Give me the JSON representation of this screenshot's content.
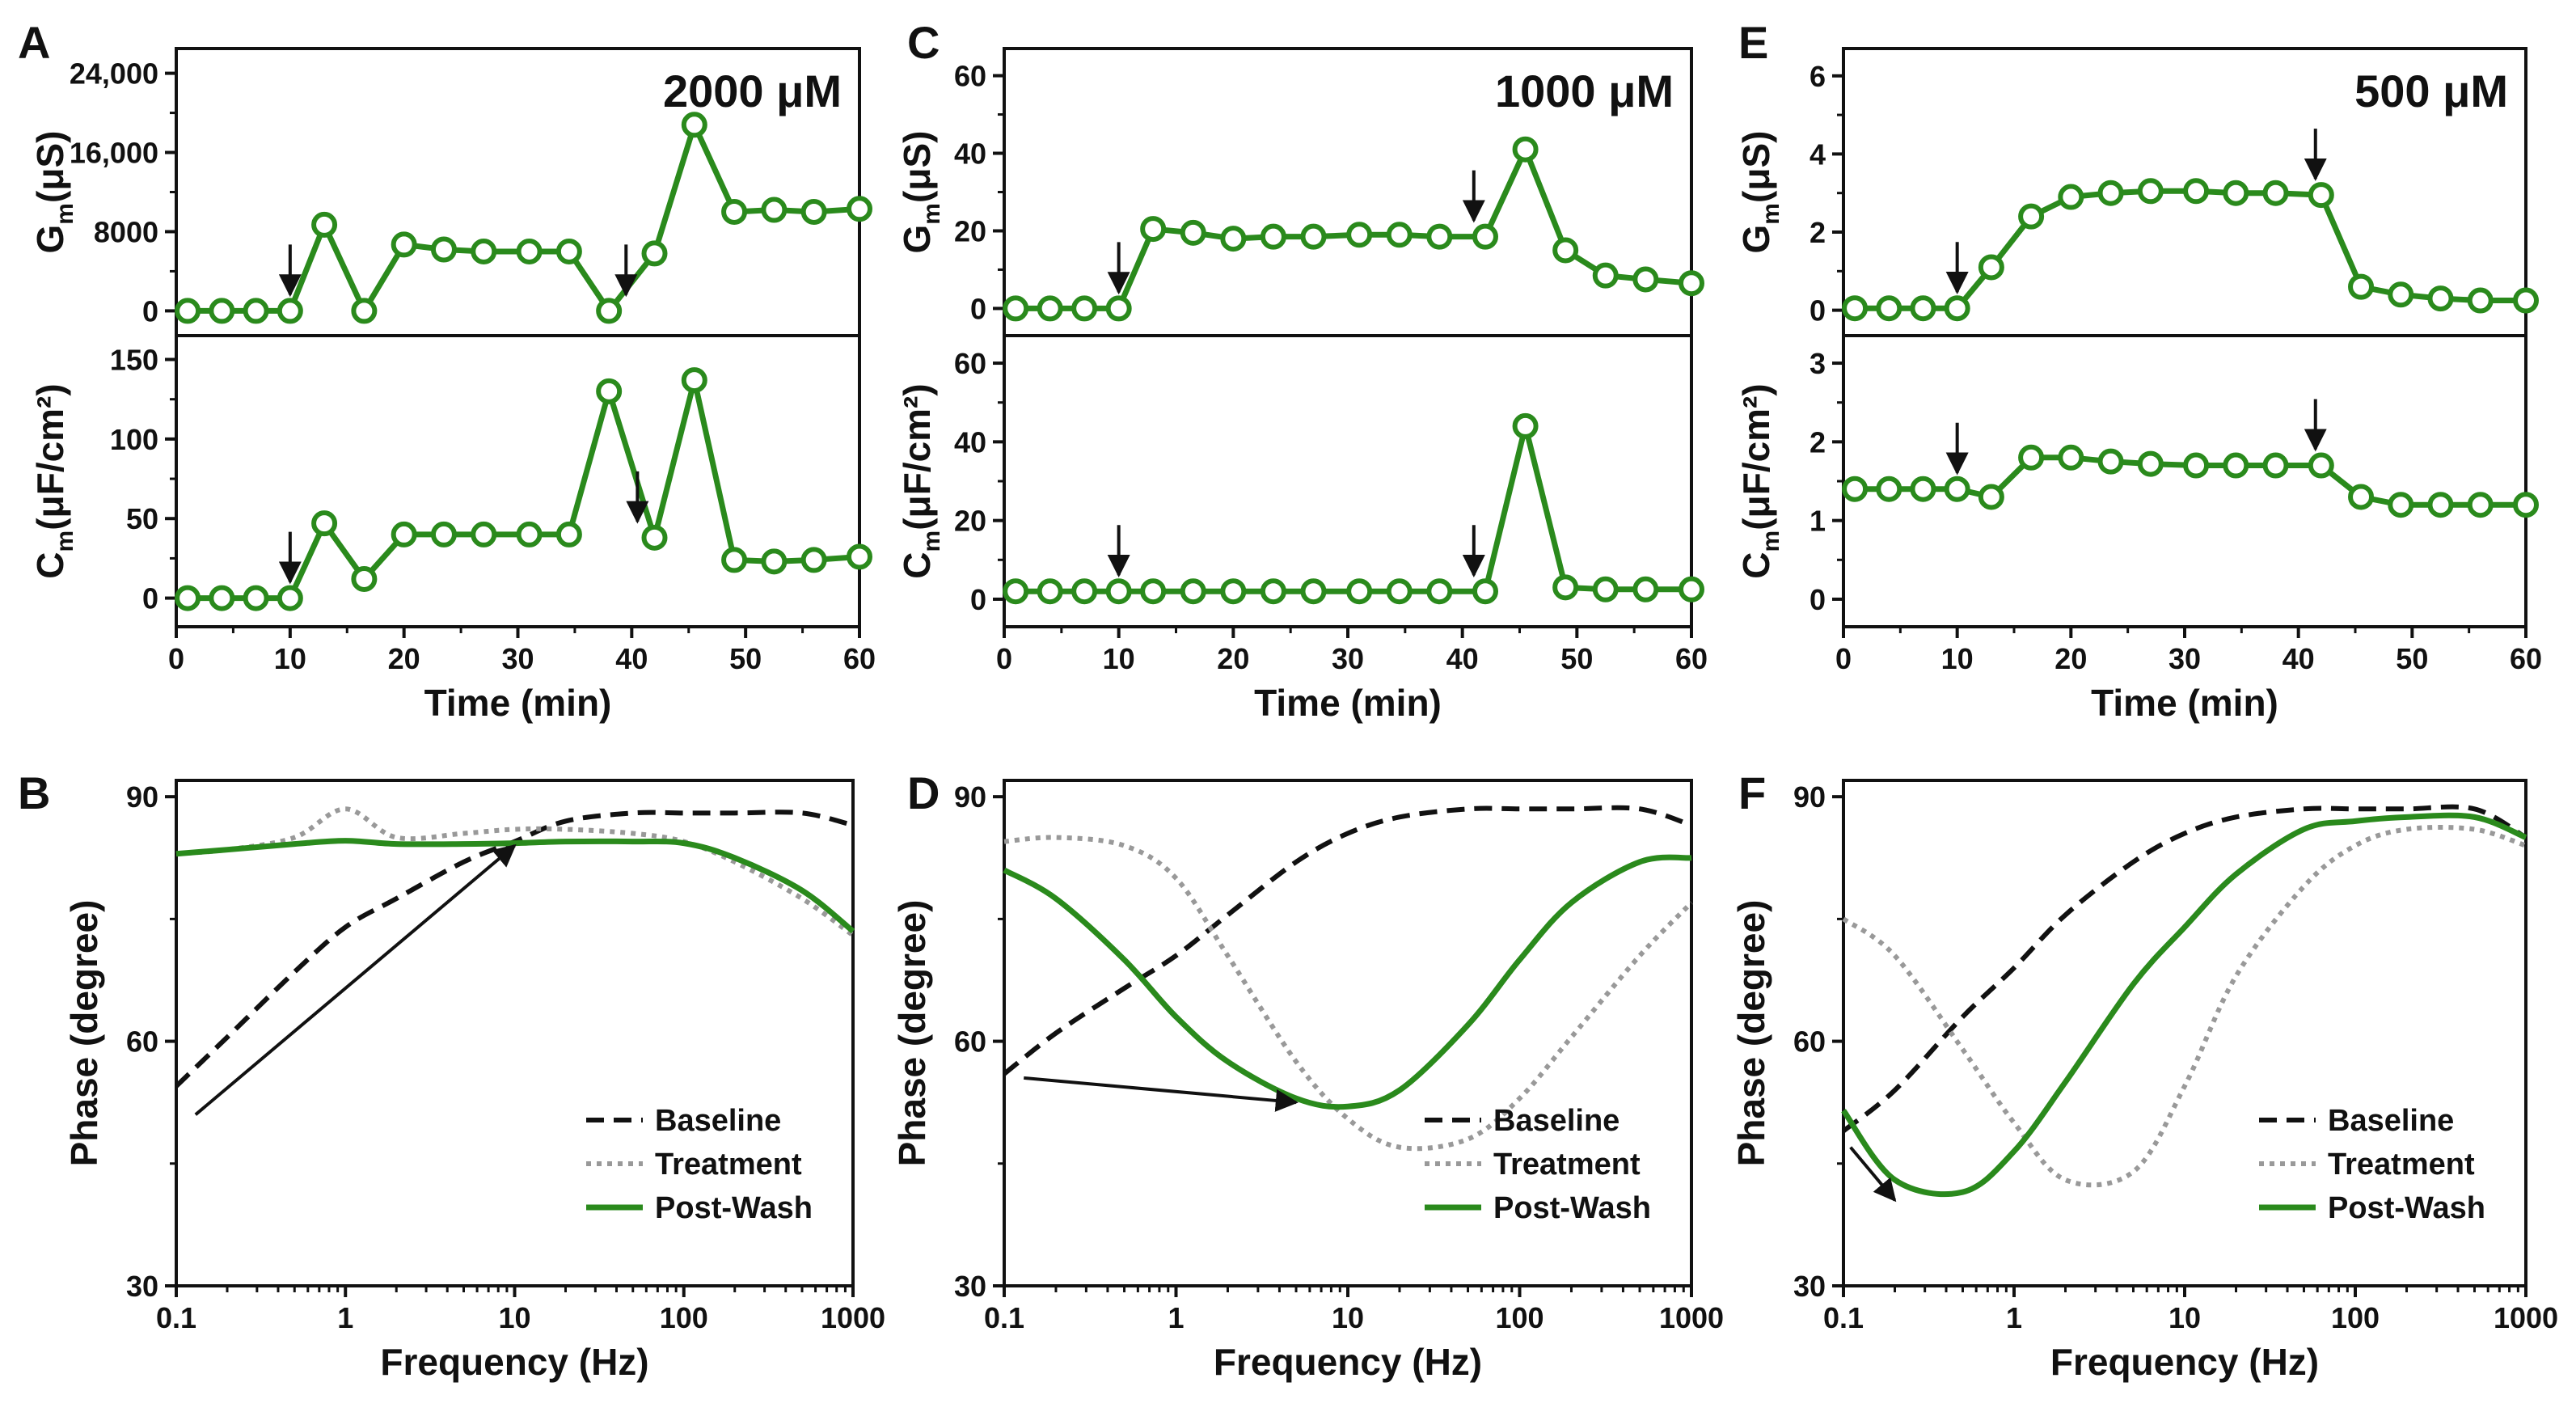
{
  "colors": {
    "green": "#2a8a1c",
    "baseline": "#111111",
    "treatment": "#999999",
    "axis": "#111111",
    "arrow": "#111111"
  },
  "chart_data": [
    {
      "panel": "A",
      "type": "line",
      "concentration": "2000 μM",
      "xlabel": "Time (min)",
      "xlim": [
        0,
        60
      ],
      "xticks": [
        "0",
        "10",
        "20",
        "30",
        "40",
        "50",
        "60"
      ],
      "x": [
        1,
        4,
        7,
        10,
        13,
        16.5,
        20,
        23.5,
        27,
        31,
        34.5,
        38,
        42,
        45.5,
        49,
        52.5,
        56,
        60
      ],
      "top": {
        "ylabel_main": "G",
        "ylabel_sub": "m",
        "ylabel_unit": "(μS)",
        "ylim": [
          -2500,
          26500
        ],
        "yticks": [
          0,
          8000,
          16000,
          24000
        ],
        "ytick_labels": [
          "0",
          "8000",
          "16,000",
          "24,000"
        ],
        "values": [
          0,
          0,
          0,
          0,
          8700,
          0,
          6700,
          6200,
          6000,
          6000,
          6000,
          0,
          5800,
          18800,
          10000,
          10200,
          10000,
          10300
        ],
        "arrow_x": [
          10,
          39.5
        ]
      },
      "bottom": {
        "ylabel_main": "C",
        "ylabel_sub": "m",
        "ylabel_unit": "(μF/cm²)",
        "ylim": [
          -18,
          165
        ],
        "yticks": [
          0,
          50,
          100,
          150
        ],
        "ytick_labels": [
          "0",
          "50",
          "100",
          "150"
        ],
        "values": [
          0,
          0,
          0,
          0,
          47,
          12,
          40,
          40,
          40,
          40,
          40,
          130,
          38,
          137,
          24,
          23,
          24,
          26
        ],
        "arrow_x": [
          10,
          40.5
        ]
      }
    },
    {
      "panel": "C",
      "type": "line",
      "concentration": "1000 μM",
      "xlabel": "Time (min)",
      "xlim": [
        0,
        60
      ],
      "xticks": [
        "0",
        "10",
        "20",
        "30",
        "40",
        "50",
        "60"
      ],
      "x": [
        1,
        4,
        7,
        10,
        13,
        16.5,
        20,
        23.5,
        27,
        31,
        34.5,
        38,
        42,
        45.5,
        49,
        52.5,
        56,
        60
      ],
      "top": {
        "ylabel_main": "G",
        "ylabel_sub": "m",
        "ylabel_unit": "(μS)",
        "ylim": [
          -7,
          67
        ],
        "yticks": [
          0,
          20,
          40,
          60
        ],
        "ytick_labels": [
          "0",
          "20",
          "40",
          "60"
        ],
        "values": [
          0,
          0,
          0,
          0,
          20.5,
          19.5,
          18,
          18.5,
          18.5,
          19,
          19,
          18.5,
          18.5,
          41,
          15,
          8.5,
          7.5,
          6.5
        ],
        "arrow_x": [
          10,
          41
        ]
      },
      "bottom": {
        "ylabel_main": "C",
        "ylabel_sub": "m",
        "ylabel_unit": "(μF/cm²)",
        "ylim": [
          -7,
          67
        ],
        "yticks": [
          0,
          20,
          40,
          60
        ],
        "ytick_labels": [
          "0",
          "20",
          "40",
          "60"
        ],
        "values": [
          2,
          2,
          2,
          2,
          2,
          2,
          2,
          2,
          2,
          2,
          2,
          2,
          2,
          44,
          3,
          2.5,
          2.5,
          2.5
        ],
        "arrow_x": [
          10,
          41
        ]
      }
    },
    {
      "panel": "E",
      "type": "line",
      "concentration": "500 μM",
      "xlabel": "Time (min)",
      "xlim": [
        0,
        60
      ],
      "xticks": [
        "0",
        "10",
        "20",
        "30",
        "40",
        "50",
        "60"
      ],
      "x": [
        1,
        4,
        7,
        10,
        13,
        16.5,
        20,
        23.5,
        27,
        31,
        34.5,
        38,
        42,
        45.5,
        49,
        52.5,
        56,
        60
      ],
      "top": {
        "ylabel_main": "G",
        "ylabel_sub": "m",
        "ylabel_unit": "(μS)",
        "ylim": [
          -0.65,
          6.7
        ],
        "yticks": [
          0,
          2,
          4,
          6
        ],
        "ytick_labels": [
          "0",
          "2",
          "4",
          "6"
        ],
        "values": [
          0.05,
          0.05,
          0.05,
          0.05,
          1.1,
          2.4,
          2.9,
          3.0,
          3.05,
          3.05,
          3.0,
          3.0,
          2.95,
          0.6,
          0.4,
          0.3,
          0.25,
          0.25
        ],
        "arrow_x": [
          10,
          41.5
        ]
      },
      "bottom": {
        "ylabel_main": "C",
        "ylabel_sub": "m",
        "ylabel_unit": "(μF/cm²)",
        "ylim": [
          -0.35,
          3.35
        ],
        "yticks": [
          0,
          1,
          2,
          3
        ],
        "ytick_labels": [
          "0",
          "1",
          "2",
          "3"
        ],
        "values": [
          1.4,
          1.4,
          1.4,
          1.4,
          1.3,
          1.8,
          1.8,
          1.75,
          1.72,
          1.7,
          1.7,
          1.7,
          1.7,
          1.3,
          1.2,
          1.2,
          1.2,
          1.2
        ],
        "arrow_x": [
          10,
          41.5
        ]
      }
    },
    {
      "panel": "B",
      "type": "line",
      "xscale": "log",
      "xlabel": "Frequency (Hz)",
      "ylabel": "Phase (degree)",
      "xlim": [
        0.1,
        1000
      ],
      "ylim": [
        30,
        92
      ],
      "xticks": [
        "0.1",
        "1",
        "10",
        "100",
        "1000"
      ],
      "yticks": [
        "30",
        "60",
        "90"
      ],
      "x": [
        0.1,
        0.2,
        0.5,
        1,
        2,
        5,
        10,
        20,
        50,
        100,
        200,
        500,
        1000
      ],
      "series": [
        {
          "name": "Baseline",
          "values": [
            54.5,
            60.5,
            68.5,
            74,
            77.5,
            82,
            84.5,
            87,
            88,
            88,
            88,
            88,
            86.5
          ]
        },
        {
          "name": "Treatment",
          "values": [
            83,
            83.5,
            85,
            88.5,
            85,
            85.5,
            86,
            86,
            85.5,
            84.5,
            82,
            77.5,
            73
          ]
        },
        {
          "name": "Post-Wash",
          "values": [
            83,
            83.5,
            84.2,
            84.6,
            84.2,
            84.2,
            84.3,
            84.5,
            84.5,
            84.3,
            82.5,
            78.5,
            73.5
          ]
        }
      ],
      "legend": [
        "Baseline",
        "Treatment",
        "Post-Wash"
      ],
      "legend_position": "bottom-right",
      "trend_arrow": {
        "from": [
          0.13,
          51
        ],
        "to": [
          10,
          84
        ]
      }
    },
    {
      "panel": "D",
      "type": "line",
      "xscale": "log",
      "xlabel": "Frequency (Hz)",
      "ylabel": "Phase (degree)",
      "xlim": [
        0.1,
        1000
      ],
      "ylim": [
        30,
        92
      ],
      "xticks": [
        "0.1",
        "1",
        "10",
        "100",
        "1000"
      ],
      "yticks": [
        "30",
        "60",
        "90"
      ],
      "x": [
        0.1,
        0.2,
        0.5,
        1,
        2,
        5,
        10,
        20,
        50,
        100,
        200,
        500,
        1000
      ],
      "series": [
        {
          "name": "Baseline",
          "values": [
            56,
            61,
            66.5,
            70.5,
            75.5,
            82,
            85.5,
            87.5,
            88.5,
            88.5,
            88.5,
            88.5,
            86.5
          ]
        },
        {
          "name": "Treatment",
          "values": [
            84.5,
            85,
            84,
            80,
            70.5,
            57.5,
            50.5,
            47,
            48,
            53,
            60.5,
            70.5,
            77
          ]
        },
        {
          "name": "Post-Wash",
          "values": [
            81,
            77.5,
            70,
            63,
            57.5,
            53,
            52,
            54,
            62,
            70,
            77,
            82,
            82.5
          ]
        }
      ],
      "legend": [
        "Baseline",
        "Treatment",
        "Post-Wash"
      ],
      "legend_position": "bottom-right",
      "trend_arrow": {
        "from": [
          0.13,
          55.5
        ],
        "to": [
          5,
          52.5
        ]
      }
    },
    {
      "panel": "F",
      "type": "line",
      "xscale": "log",
      "xlabel": "Frequency (Hz)",
      "ylabel": "Phase (degree)",
      "xlim": [
        0.1,
        1000
      ],
      "ylim": [
        30,
        92
      ],
      "xticks": [
        "0.1",
        "1",
        "10",
        "100",
        "1000"
      ],
      "yticks": [
        "30",
        "60",
        "90"
      ],
      "x": [
        0.1,
        0.2,
        0.5,
        1,
        2,
        5,
        10,
        20,
        50,
        100,
        200,
        500,
        1000
      ],
      "series": [
        {
          "name": "Baseline",
          "values": [
            49,
            54,
            63,
            69,
            75.5,
            82,
            85.5,
            87.5,
            88.5,
            88.5,
            88.5,
            88.5,
            85
          ]
        },
        {
          "name": "Treatment",
          "values": [
            75,
            70.5,
            59,
            50,
            43,
            44,
            54.5,
            68,
            79,
            84,
            86,
            86,
            84
          ]
        },
        {
          "name": "Post-Wash",
          "values": [
            51.5,
            43,
            41.5,
            46.5,
            55,
            67,
            74,
            80.5,
            86,
            87,
            87.5,
            87.5,
            85
          ]
        }
      ],
      "legend": [
        "Baseline",
        "Treatment",
        "Post-Wash"
      ],
      "legend_position": "bottom-right",
      "trend_arrow": {
        "from": [
          0.11,
          47
        ],
        "to": [
          0.2,
          40.5
        ]
      }
    }
  ]
}
